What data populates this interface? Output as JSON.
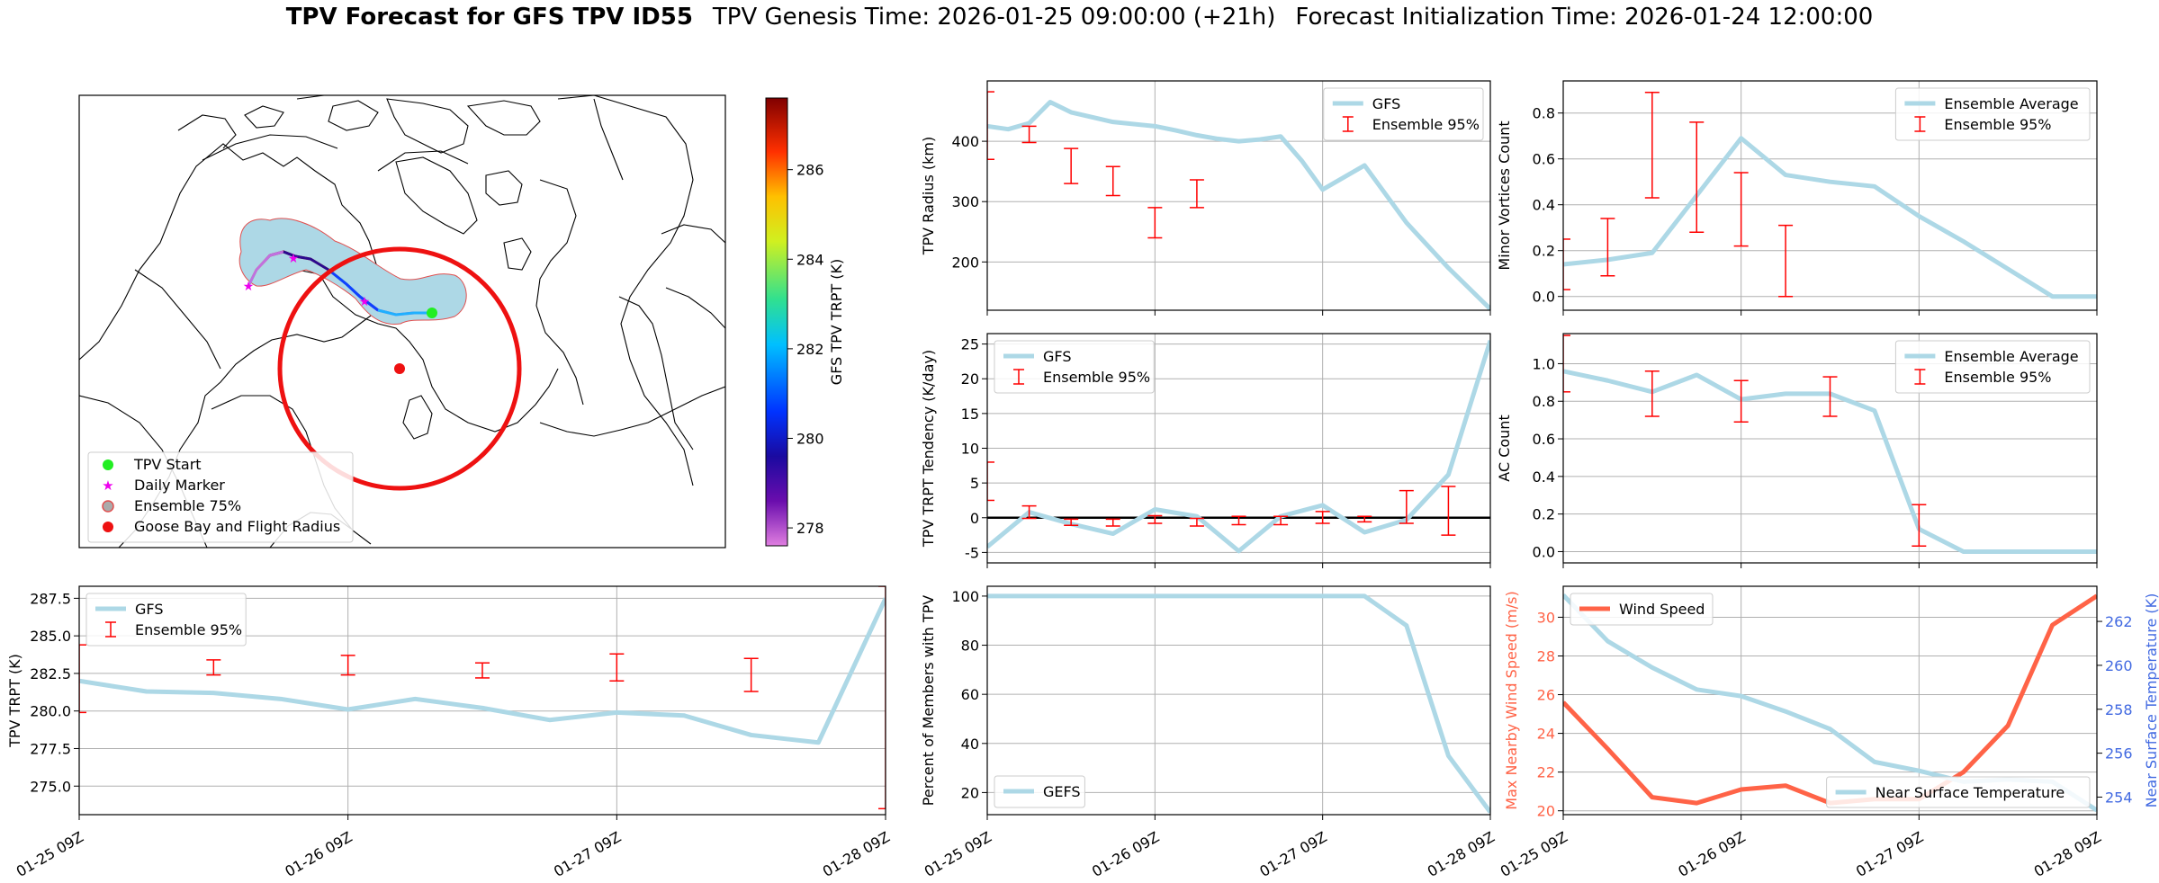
{
  "title": {
    "bold": "TPV Forecast for GFS TPV ID55",
    "genesis": "TPV Genesis Time: 2026-01-25 09:00:00 (+21h)",
    "init": "Forecast Initialization Time: 2026-01-24 12:00:00"
  },
  "colors": {
    "gfs": "#add8e6",
    "ensemble": "#ff0000",
    "wind": "#ff6347",
    "temp_axis": "#4169e1"
  },
  "map": {
    "legend": [
      "TPV Start",
      "Daily Marker",
      "Ensemble 75%",
      "Goose Bay and Flight Radius"
    ],
    "colorbar_label": "GFS TPV TRPT (K)",
    "colorbar_ticks": [
      "278",
      "280",
      "282",
      "284",
      "286"
    ],
    "colorbar_range": [
      277.6,
      287.6
    ]
  },
  "chart_data": [
    {
      "id": "trpt",
      "type": "line",
      "ylabel": "TPV TRPT (K)",
      "xticks": [
        "01-25 09Z",
        "01-26 09Z",
        "01-27 09Z",
        "01-28 09Z"
      ],
      "xlim": [
        0,
        72
      ],
      "ylim": [
        273.1,
        288.3
      ],
      "yticks": [
        275.0,
        277.5,
        280.0,
        282.5,
        285.0,
        287.5
      ],
      "legend_loc": "upper left",
      "series": [
        {
          "name": "GFS",
          "x": [
            0,
            6,
            12,
            18,
            24,
            30,
            36,
            42,
            48,
            54,
            60,
            66,
            72
          ],
          "y": [
            282.0,
            281.3,
            281.2,
            280.8,
            280.1,
            280.8,
            280.2,
            279.4,
            279.9,
            279.7,
            278.4,
            277.9,
            287.5
          ]
        }
      ],
      "errorbars": {
        "name": "Ensemble 95%",
        "x": [
          0,
          12,
          24,
          36,
          48,
          60,
          72
        ],
        "low": [
          279.9,
          282.4,
          282.4,
          282.2,
          282.0,
          281.3,
          273.5
        ],
        "high": [
          284.4,
          283.4,
          283.7,
          283.2,
          283.8,
          283.5,
          288.3
        ]
      }
    },
    {
      "id": "radius",
      "type": "line",
      "ylabel": "TPV Radius (km)",
      "xlim": [
        0,
        72
      ],
      "ylim": [
        120,
        500
      ],
      "yticks": [
        200,
        300,
        400
      ],
      "legend_loc": "upper right",
      "series": [
        {
          "name": "GFS",
          "x": [
            0,
            3,
            6,
            9,
            12,
            18,
            24,
            27,
            30,
            33,
            36,
            39,
            42,
            45,
            48,
            54,
            60,
            66,
            72
          ],
          "y": [
            425,
            420,
            430,
            465,
            448,
            432,
            425,
            418,
            410,
            404,
            400,
            403,
            408,
            368,
            320,
            360,
            265,
            190,
            122
          ]
        }
      ],
      "errorbars": {
        "name": "Ensemble 95%",
        "x": [
          0,
          6,
          12,
          18,
          24,
          30,
          36
        ],
        "low": [
          370,
          398,
          330,
          310,
          240,
          290,
          0
        ],
        "high": [
          482,
          425,
          388,
          358,
          290,
          336,
          0
        ]
      }
    },
    {
      "id": "minor",
      "type": "line",
      "ylabel": "Minor Vortices Count",
      "xlim": [
        0,
        72
      ],
      "ylim": [
        -0.06,
        0.94
      ],
      "yticks": [
        0.0,
        0.2,
        0.4,
        0.6,
        0.8
      ],
      "legend_loc": "upper right",
      "series": [
        {
          "name": "Ensemble Average",
          "x": [
            0,
            6,
            12,
            18,
            24,
            30,
            36,
            42,
            48,
            54,
            60,
            66,
            72
          ],
          "y": [
            0.14,
            0.16,
            0.19,
            0.44,
            0.69,
            0.53,
            0.5,
            0.48,
            0.35,
            0.24,
            0.12,
            0.0,
            0.0
          ]
        }
      ],
      "errorbars": {
        "name": "Ensemble 95%",
        "x": [
          0,
          6,
          12,
          18,
          24,
          30,
          36
        ],
        "low": [
          0.03,
          0.09,
          0.43,
          0.28,
          0.22,
          0.0,
          0
        ],
        "high": [
          0.25,
          0.34,
          0.89,
          0.76,
          0.54,
          0.31,
          0
        ]
      }
    },
    {
      "id": "tendency",
      "type": "line",
      "ylabel": "TPV TRPT Tendency (K/day)",
      "xlim": [
        0,
        72
      ],
      "ylim": [
        -6.5,
        26.5
      ],
      "yticks": [
        -5,
        0,
        5,
        10,
        15,
        20,
        25
      ],
      "legend_loc": "upper left",
      "hline": 0,
      "series": [
        {
          "name": "GFS",
          "x": [
            0,
            6,
            12,
            18,
            24,
            30,
            36,
            42,
            48,
            54,
            60,
            66,
            72
          ],
          "y": [
            -4.2,
            0.8,
            -0.9,
            -2.3,
            1.2,
            0.2,
            -4.8,
            0.2,
            1.8,
            -2.1,
            -0.3,
            6.2,
            25.5
          ]
        }
      ],
      "errorbars": {
        "name": "Ensemble 95%",
        "x": [
          0,
          6,
          12,
          18,
          24,
          30,
          36,
          42,
          48,
          54,
          60,
          66,
          72
        ],
        "low": [
          2.5,
          -0.1,
          -1.1,
          -1.2,
          -0.8,
          -1.2,
          -1.0,
          -1.0,
          -0.8,
          -0.6,
          -0.8,
          -2.5,
          0
        ],
        "high": [
          8.0,
          1.7,
          -0.2,
          -0.2,
          0.3,
          -0.1,
          0.2,
          0.2,
          0.9,
          0.2,
          3.9,
          4.5,
          0
        ]
      }
    },
    {
      "id": "ac",
      "type": "line",
      "ylabel": "AC Count",
      "xlim": [
        0,
        72
      ],
      "ylim": [
        -0.06,
        1.16
      ],
      "yticks": [
        0.0,
        0.2,
        0.4,
        0.6,
        0.8,
        1.0
      ],
      "legend_loc": "upper right",
      "series": [
        {
          "name": "Ensemble Average",
          "x": [
            0,
            6,
            12,
            18,
            24,
            30,
            36,
            42,
            48,
            54,
            60,
            66,
            72
          ],
          "y": [
            0.96,
            0.91,
            0.85,
            0.94,
            0.81,
            0.84,
            0.84,
            0.75,
            0.12,
            0.0,
            0.0,
            0.0,
            0.0
          ]
        }
      ],
      "errorbars": {
        "name": "Ensemble 95%",
        "x": [
          0,
          12,
          24,
          36,
          48
        ],
        "low": [
          0.85,
          0.72,
          0.69,
          0.72,
          0.03
        ],
        "high": [
          1.15,
          0.96,
          0.91,
          0.93,
          0.25
        ]
      }
    },
    {
      "id": "percent",
      "type": "line",
      "ylabel": "Percent of Members with TPV",
      "xticks": [
        "01-25 09Z",
        "01-26 09Z",
        "01-27 09Z",
        "01-28 09Z"
      ],
      "xlim": [
        0,
        72
      ],
      "ylim": [
        11,
        104
      ],
      "yticks": [
        20,
        40,
        60,
        80,
        100
      ],
      "legend_loc": "lower left",
      "series": [
        {
          "name": "GEFS",
          "x": [
            0,
            6,
            12,
            18,
            24,
            30,
            36,
            42,
            48,
            54,
            60,
            66,
            72
          ],
          "y": [
            100,
            100,
            100,
            100,
            100,
            100,
            100,
            100,
            100,
            100,
            88,
            35,
            12
          ]
        }
      ]
    },
    {
      "id": "wind",
      "type": "line",
      "ylabel": "Max Nearby Wind Speed (m/s)",
      "ylabel2": "Near Surface Temperature (K)",
      "xticks": [
        "01-25 09Z",
        "01-26 09Z",
        "01-27 09Z",
        "01-28 09Z"
      ],
      "xlim": [
        0,
        72
      ],
      "ylim": [
        19.8,
        31.6
      ],
      "yticks": [
        20,
        22,
        24,
        26,
        28,
        30
      ],
      "ylim2": [
        253.2,
        263.6
      ],
      "yticks2": [
        254,
        256,
        258,
        260,
        262
      ],
      "series": [
        {
          "name": "Wind Speed",
          "axis": "left",
          "x": [
            0,
            6,
            12,
            18,
            24,
            30,
            36,
            42,
            48,
            54,
            60,
            66,
            72
          ],
          "y": [
            25.6,
            23.2,
            20.7,
            20.4,
            21.1,
            21.3,
            20.4,
            20.6,
            20.6,
            22.0,
            24.4,
            29.6,
            31.1
          ]
        },
        {
          "name": "Near Surface Temperature",
          "axis": "right",
          "x": [
            0,
            6,
            12,
            18,
            24,
            30,
            36,
            42,
            48,
            54,
            60,
            66,
            72
          ],
          "y": [
            263.2,
            261.1,
            259.9,
            258.9,
            258.6,
            257.9,
            257.1,
            255.6,
            255.2,
            254.7,
            254.8,
            254.7,
            253.4
          ]
        }
      ]
    }
  ]
}
